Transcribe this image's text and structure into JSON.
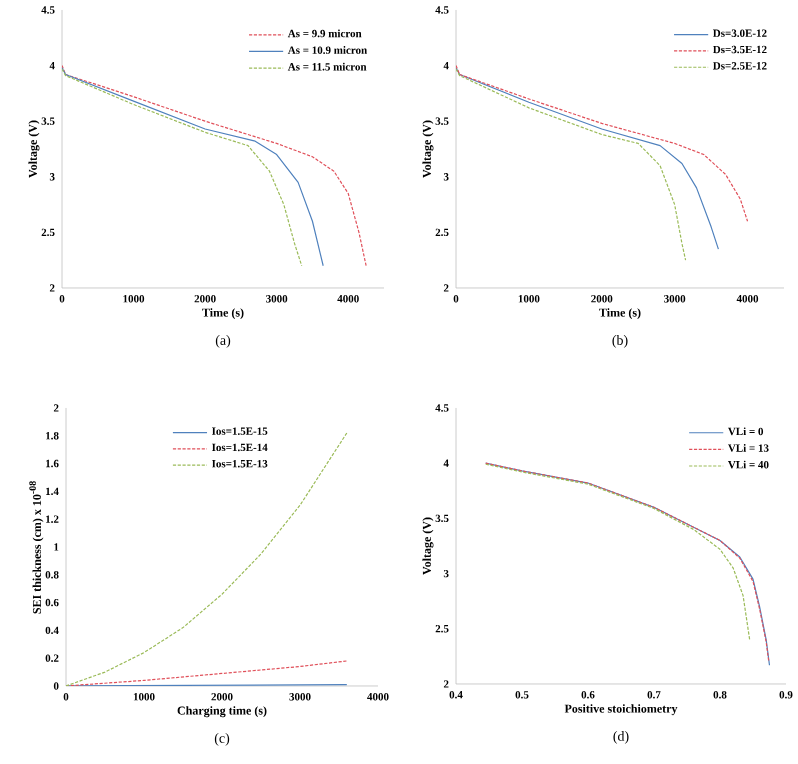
{
  "chart_data": [
    {
      "type": "line",
      "xlabel": "Time (s)",
      "ylabel": "Voltage (V)",
      "xlim": [
        0,
        4500
      ],
      "xticks": [
        0,
        1000,
        2000,
        3000,
        4000
      ],
      "ylim": [
        2,
        4.5
      ],
      "yticks": [
        2,
        2.5,
        3,
        3.5,
        4,
        4.5
      ],
      "legend": "top right",
      "annotations": [
        "(a)"
      ],
      "series": [
        {
          "name": "As = 9.9 micron",
          "color": "#e0505a",
          "line_style": "dashed",
          "x": [
            0,
            50,
            1000,
            2000,
            3000,
            3500,
            3800,
            4000,
            4150,
            4250
          ],
          "values": [
            4.0,
            3.92,
            3.72,
            3.5,
            3.3,
            3.18,
            3.05,
            2.85,
            2.5,
            2.2
          ]
        },
        {
          "name": "As = 10.9 micron",
          "color": "#4f81bd",
          "line_style": "solid",
          "x": [
            0,
            50,
            1000,
            2000,
            2700,
            3000,
            3300,
            3500,
            3650
          ],
          "values": [
            3.98,
            3.92,
            3.68,
            3.43,
            3.32,
            3.2,
            2.95,
            2.6,
            2.2
          ]
        },
        {
          "name": "As = 11.5 micron",
          "color": "#9bbb59",
          "line_style": "dashed",
          "x": [
            0,
            50,
            1000,
            2000,
            2600,
            2900,
            3100,
            3250,
            3350
          ],
          "values": [
            3.97,
            3.91,
            3.65,
            3.4,
            3.28,
            3.05,
            2.75,
            2.4,
            2.2
          ]
        }
      ]
    },
    {
      "type": "line",
      "xlabel": "Time (s)",
      "ylabel": "Voltage (V)",
      "xlim": [
        0,
        4500
      ],
      "xticks": [
        0,
        1000,
        2000,
        3000,
        4000
      ],
      "ylim": [
        2,
        4.5
      ],
      "yticks": [
        2,
        2.5,
        3,
        3.5,
        4,
        4.5
      ],
      "legend": "top right",
      "annotations": [
        "(b)"
      ],
      "series": [
        {
          "name": "Ds=3.0E-12",
          "color": "#4f81bd",
          "line_style": "solid",
          "x": [
            0,
            50,
            1000,
            2000,
            2800,
            3100,
            3300,
            3500,
            3600
          ],
          "values": [
            3.98,
            3.92,
            3.67,
            3.43,
            3.28,
            3.12,
            2.9,
            2.55,
            2.35
          ]
        },
        {
          "name": "Ds=3.5E-12",
          "color": "#e0505a",
          "line_style": "dashed",
          "x": [
            0,
            50,
            1000,
            2000,
            3000,
            3400,
            3700,
            3900,
            4000
          ],
          "values": [
            4.0,
            3.92,
            3.7,
            3.48,
            3.3,
            3.2,
            3.02,
            2.8,
            2.6
          ]
        },
        {
          "name": "Ds=2.5E-12",
          "color": "#9bbb59",
          "line_style": "dashed",
          "x": [
            0,
            50,
            1000,
            2000,
            2500,
            2800,
            3000,
            3100,
            3150
          ],
          "values": [
            3.97,
            3.91,
            3.62,
            3.38,
            3.3,
            3.1,
            2.75,
            2.4,
            2.25
          ]
        }
      ]
    },
    {
      "type": "line",
      "xlabel": "Charging time (s)",
      "ylabel": "SEI thickness (cm) x 10$^{-08}$",
      "xlim": [
        0,
        4000
      ],
      "xticks": [
        0,
        1000,
        2000,
        3000,
        4000
      ],
      "ylim": [
        0,
        2
      ],
      "yticks": [
        0,
        0.2,
        0.4,
        0.6,
        0.8,
        1,
        1.2,
        1.4,
        1.6,
        1.8,
        2
      ],
      "legend": "top",
      "annotations": [
        "(c)"
      ],
      "series": [
        {
          "name": "Ios=1.5E-15",
          "color": "#4f81bd",
          "line_style": "solid",
          "x": [
            0,
            3600
          ],
          "values": [
            0,
            0.01
          ]
        },
        {
          "name": "Ios=1.5E-14",
          "color": "#e0505a",
          "line_style": "dashed",
          "x": [
            0,
            1000,
            2000,
            3000,
            3600
          ],
          "values": [
            0,
            0.04,
            0.09,
            0.14,
            0.18
          ]
        },
        {
          "name": "Ios=1.5E-13",
          "color": "#9bbb59",
          "line_style": "dashed",
          "x": [
            0,
            500,
            1000,
            1500,
            2000,
            2500,
            3000,
            3600
          ],
          "values": [
            0,
            0.1,
            0.24,
            0.42,
            0.66,
            0.95,
            1.3,
            1.82
          ]
        }
      ]
    },
    {
      "type": "line",
      "xlabel": "Positive stoichiometry",
      "ylabel": "Voltage (V)",
      "xlim": [
        0.4,
        0.9
      ],
      "xticks": [
        0.4,
        0.5,
        0.6,
        0.7,
        0.8,
        0.9
      ],
      "ylim": [
        2,
        4.5
      ],
      "yticks": [
        2,
        2.5,
        3,
        3.5,
        4,
        4.5
      ],
      "legend": "top right",
      "annotations": [
        "(d)"
      ],
      "series": [
        {
          "name": "VLi = 0",
          "color": "#4f81bd",
          "line_style": "solid",
          "x": [
            0.445,
            0.5,
            0.6,
            0.7,
            0.76,
            0.8,
            0.83,
            0.85,
            0.86,
            0.87,
            0.875
          ],
          "values": [
            4.0,
            3.93,
            3.82,
            3.6,
            3.42,
            3.3,
            3.15,
            2.95,
            2.7,
            2.4,
            2.17
          ]
        },
        {
          "name": "VLi = 13",
          "color": "#e0505a",
          "line_style": "dashed",
          "x": [
            0.445,
            0.5,
            0.6,
            0.7,
            0.76,
            0.8,
            0.83,
            0.85,
            0.86,
            0.87,
            0.874
          ],
          "values": [
            4.0,
            3.93,
            3.82,
            3.6,
            3.42,
            3.3,
            3.14,
            2.93,
            2.68,
            2.38,
            2.2
          ]
        },
        {
          "name": "VLi = 40",
          "color": "#9bbb59",
          "line_style": "dashed",
          "x": [
            0.445,
            0.5,
            0.6,
            0.7,
            0.76,
            0.8,
            0.82,
            0.835,
            0.845
          ],
          "values": [
            3.99,
            3.92,
            3.81,
            3.59,
            3.4,
            3.22,
            3.05,
            2.8,
            2.4
          ]
        }
      ]
    }
  ]
}
